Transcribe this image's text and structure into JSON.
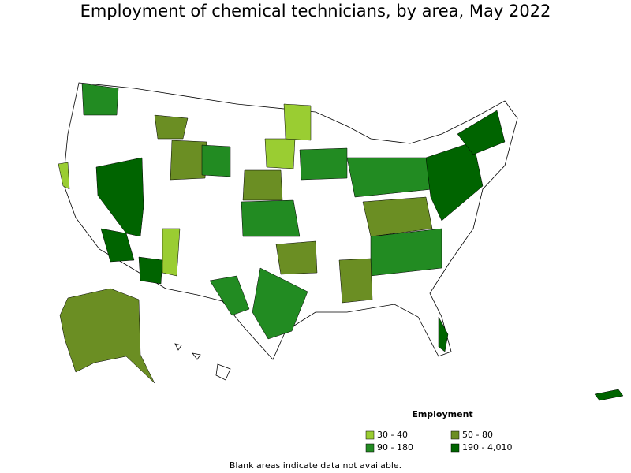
{
  "title": "Employment of chemical technicians, by area, May 2022",
  "legend": {
    "title": "Employment",
    "items": [
      {
        "label": "30 - 40",
        "color": "#9acd32"
      },
      {
        "label": "50 - 80",
        "color": "#6b8e23"
      },
      {
        "label": "90 - 180",
        "color": "#228b22"
      },
      {
        "label": "190 - 4,010",
        "color": "#006400"
      }
    ]
  },
  "note": "Blank areas indicate data not available."
}
